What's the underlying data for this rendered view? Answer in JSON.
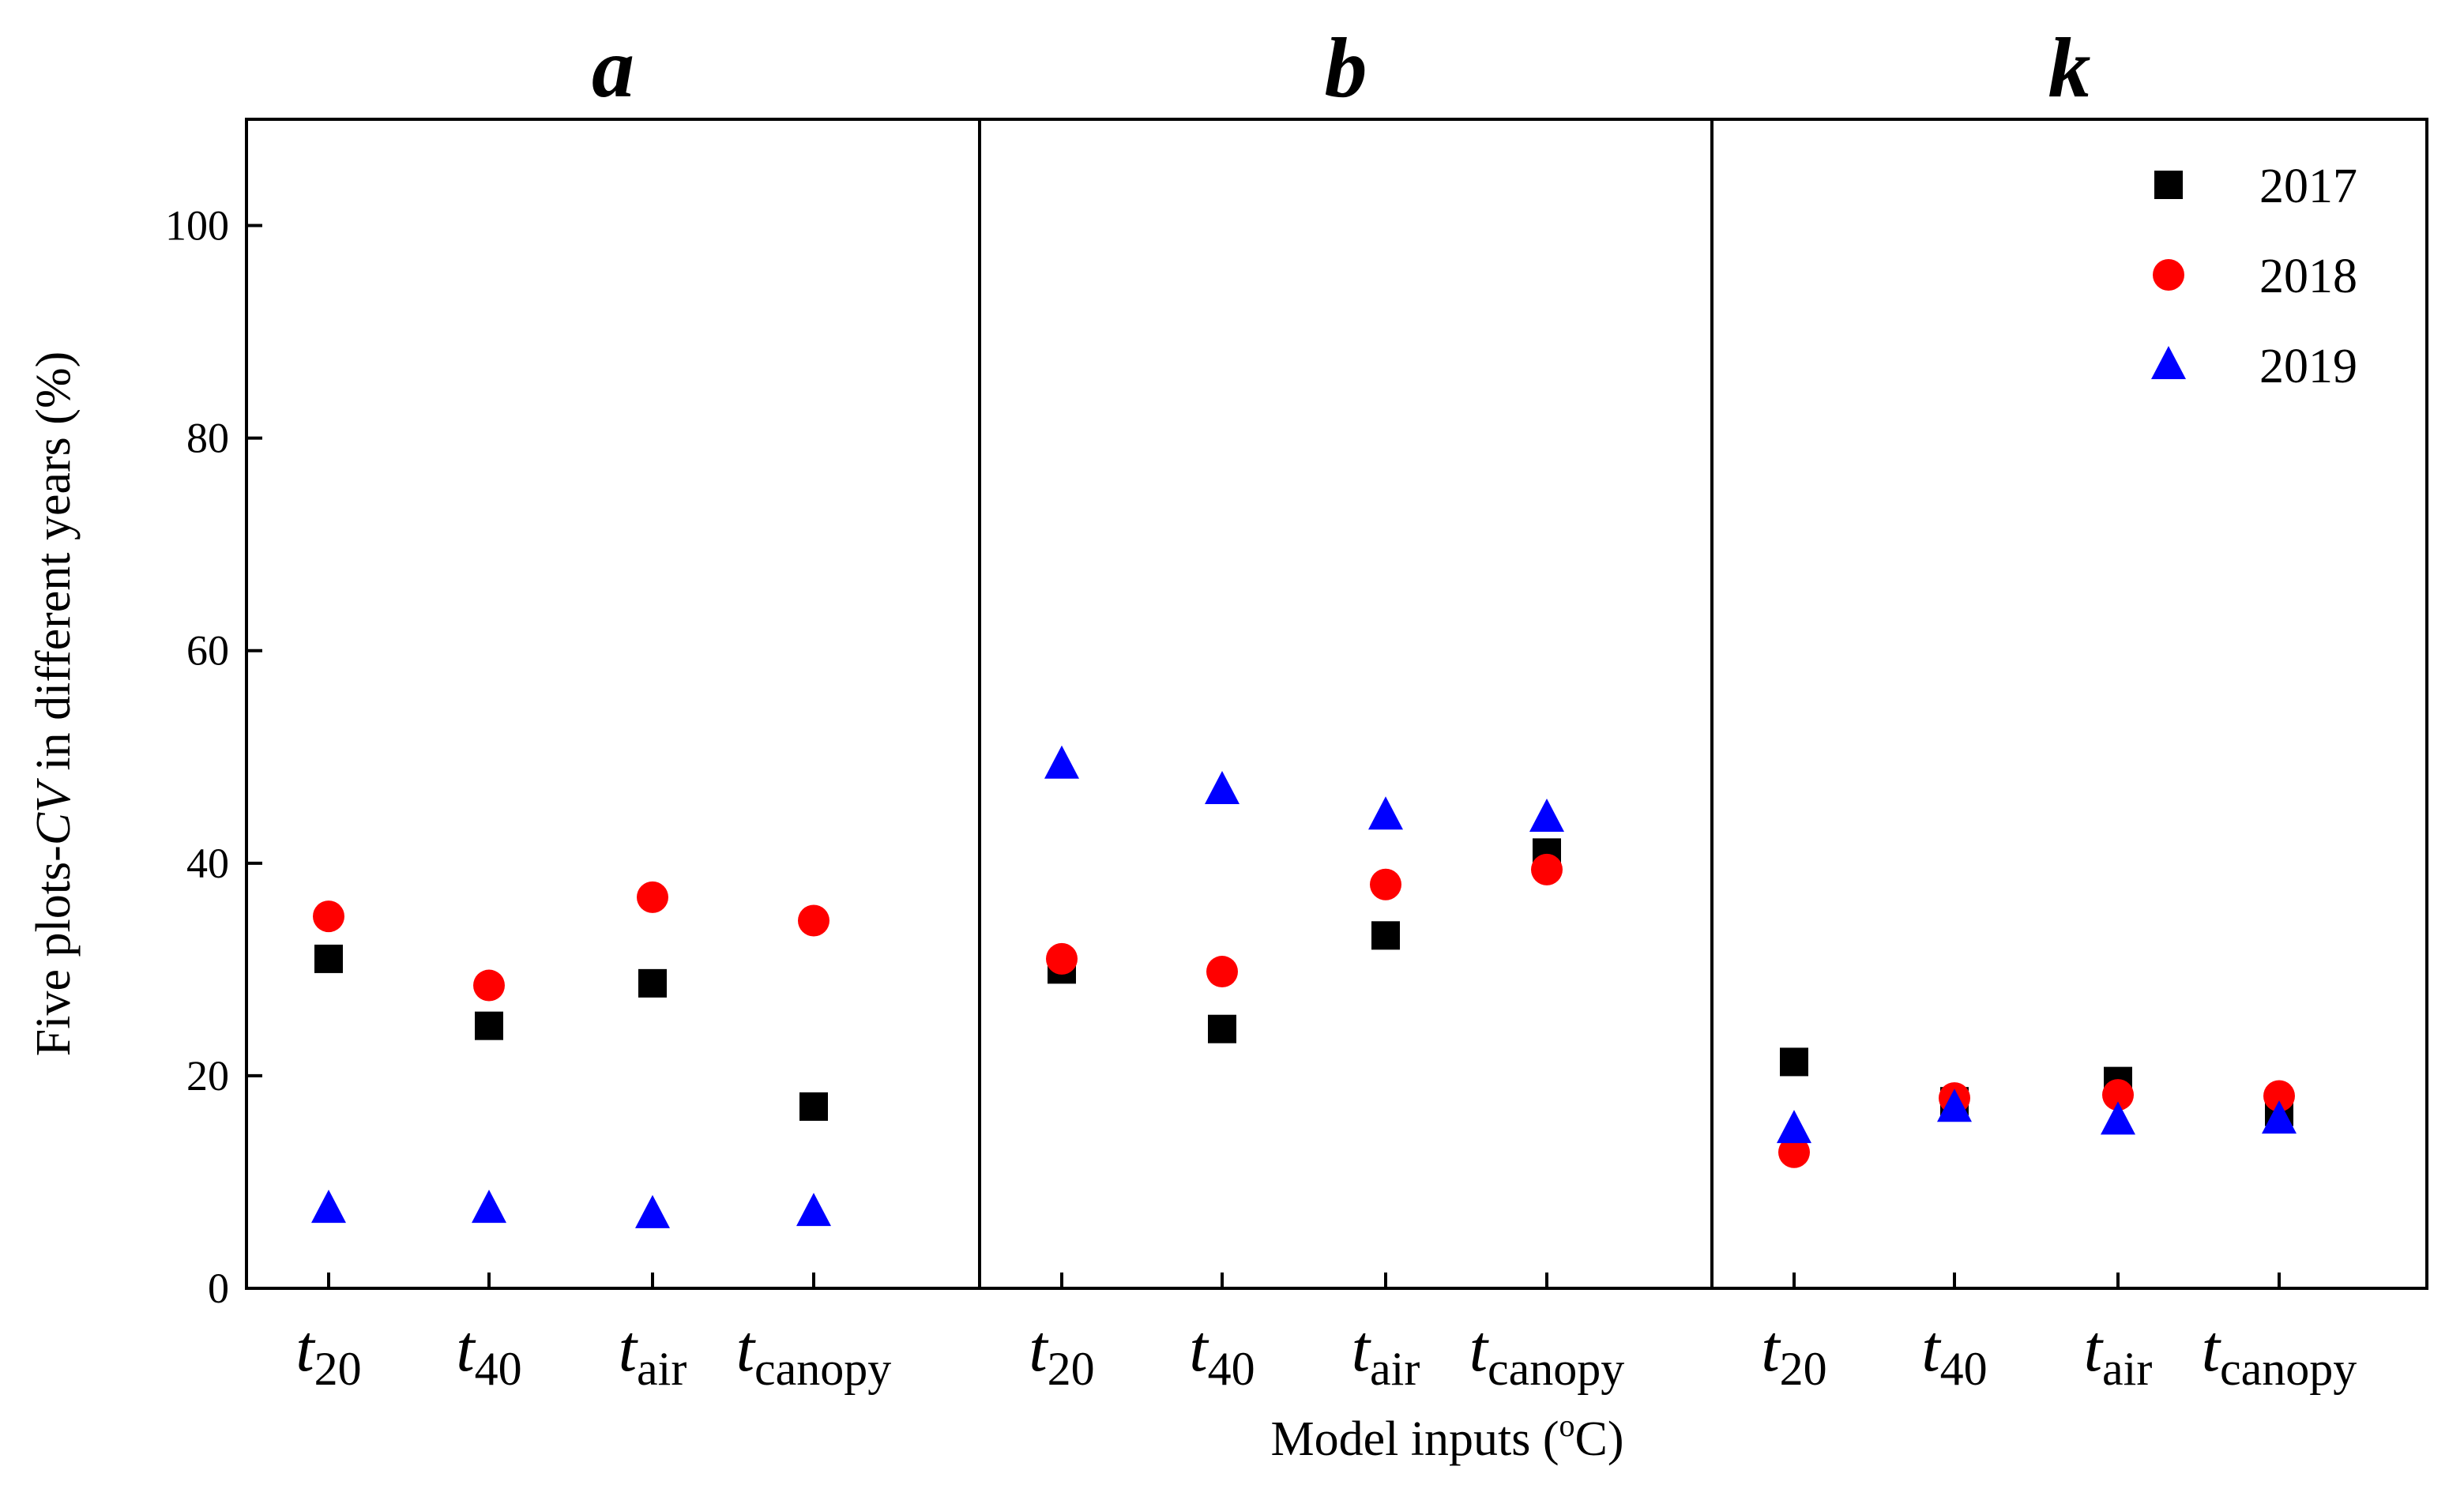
{
  "chart_data": {
    "type": "scatter",
    "ylabel_prefix": "Five plots-",
    "ylabel_italic": "CV",
    "ylabel_suffix": " in different years (%)",
    "xlabel_prefix": "Model inputs (",
    "xlabel_sup": "o",
    "xlabel_suffix": "C)",
    "ylim": [
      0,
      110
    ],
    "yticks": [
      0,
      20,
      40,
      60,
      80,
      100
    ],
    "legend_position": "top-right",
    "panels": [
      {
        "title": "a"
      },
      {
        "title": "b"
      },
      {
        "title": "k"
      }
    ],
    "categories": [
      {
        "base": "t",
        "sub": "20"
      },
      {
        "base": "t",
        "sub": "40"
      },
      {
        "base": "t",
        "sub": "air"
      },
      {
        "base": "t",
        "sub": "canopy"
      }
    ],
    "series": [
      {
        "name": "2017",
        "marker": "square",
        "color": "#000000",
        "values": [
          [
            31.0,
            24.7,
            28.7,
            17.1
          ],
          [
            30.0,
            24.4,
            33.2,
            41.0
          ],
          [
            21.3,
            17.6,
            19.5,
            16.6
          ]
        ]
      },
      {
        "name": "2018",
        "marker": "circle",
        "color": "#ff0000",
        "values": [
          [
            35.0,
            28.5,
            36.8,
            34.6
          ],
          [
            31.0,
            29.8,
            38.0,
            39.4
          ],
          [
            12.8,
            17.9,
            18.2,
            18.1
          ]
        ]
      },
      {
        "name": "2019",
        "marker": "triangle",
        "color": "#0000ff",
        "values": [
          [
            7.5,
            7.5,
            7.0,
            7.2
          ],
          [
            49.3,
            46.9,
            44.5,
            44.3
          ],
          [
            15.0,
            17.0,
            15.8,
            15.9
          ]
        ]
      }
    ]
  }
}
